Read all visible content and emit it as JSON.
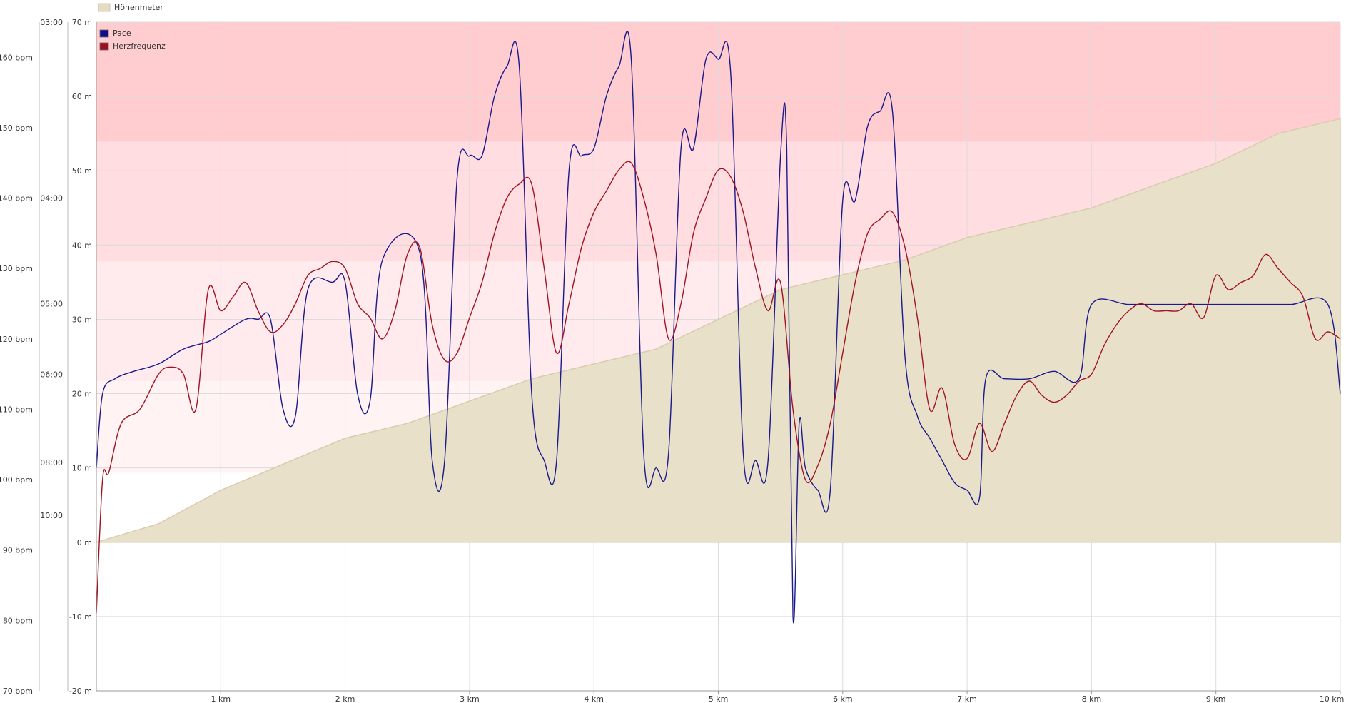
{
  "chart_data": {
    "type": "line",
    "x_axis": {
      "unit": "km",
      "range": [
        0,
        10
      ],
      "ticks": [
        {
          "value": 1,
          "label": "1 km"
        },
        {
          "value": 2,
          "label": "2 km"
        },
        {
          "value": 3,
          "label": "3 km"
        },
        {
          "value": 4,
          "label": "4 km"
        },
        {
          "value": 5,
          "label": "5 km"
        },
        {
          "value": 6,
          "label": "6 km"
        },
        {
          "value": 7,
          "label": "7 km"
        },
        {
          "value": 8,
          "label": "8 km"
        },
        {
          "value": 9,
          "label": "9 km"
        },
        {
          "value": 10,
          "label": "10 km"
        }
      ]
    },
    "elevation_axis": {
      "range": [
        -20,
        70
      ],
      "ticks": [
        {
          "value": 70,
          "label": "70 m"
        },
        {
          "value": 60,
          "label": "60 m"
        },
        {
          "value": 50,
          "label": "50 m"
        },
        {
          "value": 40,
          "label": "40 m"
        },
        {
          "value": 30,
          "label": "30 m"
        },
        {
          "value": 20,
          "label": "20 m"
        },
        {
          "value": 10,
          "label": "10 m"
        },
        {
          "value": 0,
          "label": "0 m"
        },
        {
          "value": -10,
          "label": "-10 m"
        },
        {
          "value": -20,
          "label": "-20 m"
        }
      ]
    },
    "pace_axis": {
      "scale": "reciprocal",
      "ticks": [
        {
          "value": 3,
          "label": "03:00"
        },
        {
          "value": 4,
          "label": "04:00"
        },
        {
          "value": 5,
          "label": "05:00"
        },
        {
          "value": 6,
          "label": "06:00"
        },
        {
          "value": 8,
          "label": "08:00"
        },
        {
          "value": 10,
          "label": "10:00"
        }
      ]
    },
    "heart_rate_axis": {
      "range": [
        70,
        165
      ],
      "ticks": [
        {
          "value": 160,
          "label": "160 bpm"
        },
        {
          "value": 150,
          "label": "150 bpm"
        },
        {
          "value": 140,
          "label": "140 bpm"
        },
        {
          "value": 130,
          "label": "130 bpm"
        },
        {
          "value": 120,
          "label": "120 bpm"
        },
        {
          "value": 110,
          "label": "110 bpm"
        },
        {
          "value": 100,
          "label": "100 bpm"
        },
        {
          "value": 90,
          "label": "90 bpm"
        },
        {
          "value": 80,
          "label": "80 bpm"
        },
        {
          "value": 70,
          "label": "70 bpm"
        }
      ]
    },
    "heart_rate_zones": [
      {
        "from": 101,
        "to": 114,
        "color": "#fff3f4"
      },
      {
        "from": 114,
        "to": 131,
        "color": "#ffebed"
      },
      {
        "from": 131,
        "to": 148,
        "color": "#ffdde0"
      },
      {
        "from": 148,
        "to": 165,
        "color": "#ffcdd0"
      }
    ],
    "legend": [
      {
        "label": "Höhenmeter",
        "color": "#e6dcc4",
        "border": "#c9bc9b"
      },
      {
        "label": "Pace",
        "color": "#0f0f8a"
      },
      {
        "label": "Herzfrequenz",
        "color": "#9b0f1e"
      }
    ],
    "series": [
      {
        "name": "Höhenmeter",
        "type": "area",
        "color": "#e8e0c9",
        "points": [
          [
            0,
            0
          ],
          [
            0.5,
            2.5
          ],
          [
            1,
            7
          ],
          [
            1.5,
            10.5
          ],
          [
            2,
            14
          ],
          [
            2.5,
            16
          ],
          [
            3,
            19
          ],
          [
            3.5,
            22
          ],
          [
            4,
            24
          ],
          [
            4.5,
            26
          ],
          [
            5,
            30
          ],
          [
            5.5,
            34
          ],
          [
            6,
            36
          ],
          [
            6.5,
            38
          ],
          [
            7,
            41
          ],
          [
            7.5,
            43
          ],
          [
            8,
            45
          ],
          [
            8.5,
            48
          ],
          [
            9,
            51
          ],
          [
            9.5,
            55
          ],
          [
            10,
            57
          ]
        ]
      },
      {
        "name": "Pace",
        "color": "#1a1a8c",
        "points": [
          [
            0,
            10
          ],
          [
            0.05,
            20
          ],
          [
            0.15,
            22
          ],
          [
            0.3,
            23
          ],
          [
            0.5,
            24
          ],
          [
            0.7,
            26
          ],
          [
            0.9,
            27
          ],
          [
            1,
            28
          ],
          [
            1.2,
            30
          ],
          [
            1.3,
            30
          ],
          [
            1.4,
            30
          ],
          [
            1.5,
            18
          ],
          [
            1.6,
            17
          ],
          [
            1.7,
            34
          ],
          [
            1.9,
            35
          ],
          [
            2,
            35
          ],
          [
            2.1,
            20
          ],
          [
            2.2,
            19
          ],
          [
            2.3,
            38
          ],
          [
            2.6,
            39
          ],
          [
            2.7,
            11
          ],
          [
            2.8,
            11
          ],
          [
            2.9,
            49
          ],
          [
            3.0,
            52
          ],
          [
            3.1,
            52
          ],
          [
            3.2,
            60
          ],
          [
            3.3,
            64
          ],
          [
            3.4,
            64
          ],
          [
            3.5,
            20
          ],
          [
            3.6,
            11
          ],
          [
            3.7,
            11
          ],
          [
            3.8,
            50
          ],
          [
            3.9,
            52
          ],
          [
            4.0,
            53
          ],
          [
            4.1,
            60
          ],
          [
            4.2,
            64
          ],
          [
            4.3,
            65
          ],
          [
            4.4,
            12
          ],
          [
            4.5,
            10
          ],
          [
            4.6,
            12
          ],
          [
            4.7,
            53
          ],
          [
            4.8,
            53
          ],
          [
            4.9,
            65
          ],
          [
            5.0,
            65
          ],
          [
            5.1,
            63
          ],
          [
            5.2,
            12
          ],
          [
            5.3,
            11
          ],
          [
            5.4,
            11
          ],
          [
            5.5,
            52
          ],
          [
            5.55,
            53
          ],
          [
            5.6,
            -10
          ],
          [
            5.65,
            16
          ],
          [
            5.7,
            10
          ],
          [
            5.8,
            7
          ],
          [
            5.9,
            7
          ],
          [
            6.0,
            46
          ],
          [
            6.1,
            46
          ],
          [
            6.2,
            56
          ],
          [
            6.3,
            58
          ],
          [
            6.4,
            58
          ],
          [
            6.5,
            25
          ],
          [
            6.6,
            17
          ],
          [
            6.7,
            14
          ],
          [
            6.8,
            11
          ],
          [
            6.9,
            8
          ],
          [
            7.0,
            7
          ],
          [
            7.1,
            6
          ],
          [
            7.15,
            22
          ],
          [
            7.3,
            22
          ],
          [
            7.5,
            22
          ],
          [
            7.7,
            23
          ],
          [
            7.9,
            22
          ],
          [
            8.0,
            32
          ],
          [
            8.3,
            32
          ],
          [
            8.6,
            32
          ],
          [
            9.0,
            32
          ],
          [
            9.3,
            32
          ],
          [
            9.6,
            32
          ],
          [
            9.9,
            32
          ],
          [
            10,
            20
          ]
        ]
      },
      {
        "name": "Herzfrequenz",
        "color": "#a01422",
        "points": [
          [
            0,
            81
          ],
          [
            0.05,
            100
          ],
          [
            0.1,
            101
          ],
          [
            0.2,
            108
          ],
          [
            0.35,
            110
          ],
          [
            0.5,
            115
          ],
          [
            0.6,
            116
          ],
          [
            0.7,
            115
          ],
          [
            0.8,
            110
          ],
          [
            0.9,
            127
          ],
          [
            1.0,
            124
          ],
          [
            1.1,
            126
          ],
          [
            1.2,
            128
          ],
          [
            1.3,
            124
          ],
          [
            1.4,
            121
          ],
          [
            1.5,
            122
          ],
          [
            1.6,
            125
          ],
          [
            1.7,
            129
          ],
          [
            1.8,
            130
          ],
          [
            1.9,
            131
          ],
          [
            2.0,
            130
          ],
          [
            2.1,
            125
          ],
          [
            2.2,
            123
          ],
          [
            2.3,
            120
          ],
          [
            2.4,
            124
          ],
          [
            2.5,
            132
          ],
          [
            2.6,
            133
          ],
          [
            2.7,
            122
          ],
          [
            2.8,
            117
          ],
          [
            2.9,
            118
          ],
          [
            3.0,
            123
          ],
          [
            3.1,
            128
          ],
          [
            3.2,
            135
          ],
          [
            3.3,
            140
          ],
          [
            3.4,
            142
          ],
          [
            3.5,
            142
          ],
          [
            3.6,
            130
          ],
          [
            3.7,
            118
          ],
          [
            3.8,
            125
          ],
          [
            3.9,
            133
          ],
          [
            4.0,
            138
          ],
          [
            4.1,
            141
          ],
          [
            4.2,
            144
          ],
          [
            4.3,
            145
          ],
          [
            4.4,
            140
          ],
          [
            4.5,
            132
          ],
          [
            4.6,
            120
          ],
          [
            4.7,
            125
          ],
          [
            4.8,
            135
          ],
          [
            4.9,
            140
          ],
          [
            5.0,
            144
          ],
          [
            5.1,
            143
          ],
          [
            5.2,
            138
          ],
          [
            5.3,
            130
          ],
          [
            5.4,
            124
          ],
          [
            5.5,
            128
          ],
          [
            5.6,
            110
          ],
          [
            5.7,
            100
          ],
          [
            5.8,
            102
          ],
          [
            5.9,
            108
          ],
          [
            6.0,
            118
          ],
          [
            6.1,
            128
          ],
          [
            6.2,
            135
          ],
          [
            6.3,
            137
          ],
          [
            6.4,
            138
          ],
          [
            6.5,
            133
          ],
          [
            6.6,
            123
          ],
          [
            6.7,
            110
          ],
          [
            6.8,
            113
          ],
          [
            6.9,
            105
          ],
          [
            7.0,
            103
          ],
          [
            7.1,
            108
          ],
          [
            7.2,
            104
          ],
          [
            7.3,
            108
          ],
          [
            7.4,
            112
          ],
          [
            7.5,
            114
          ],
          [
            7.6,
            112
          ],
          [
            7.7,
            111
          ],
          [
            7.8,
            112
          ],
          [
            7.9,
            114
          ],
          [
            8.0,
            115
          ],
          [
            8.1,
            119
          ],
          [
            8.2,
            122
          ],
          [
            8.3,
            124
          ],
          [
            8.4,
            125
          ],
          [
            8.5,
            124
          ],
          [
            8.6,
            124
          ],
          [
            8.7,
            124
          ],
          [
            8.8,
            125
          ],
          [
            8.9,
            123
          ],
          [
            9.0,
            129
          ],
          [
            9.1,
            127
          ],
          [
            9.2,
            128
          ],
          [
            9.3,
            129
          ],
          [
            9.4,
            132
          ],
          [
            9.5,
            130
          ],
          [
            9.6,
            128
          ],
          [
            9.7,
            126
          ],
          [
            9.8,
            120
          ],
          [
            9.9,
            121
          ],
          [
            10.0,
            120
          ]
        ]
      }
    ]
  }
}
